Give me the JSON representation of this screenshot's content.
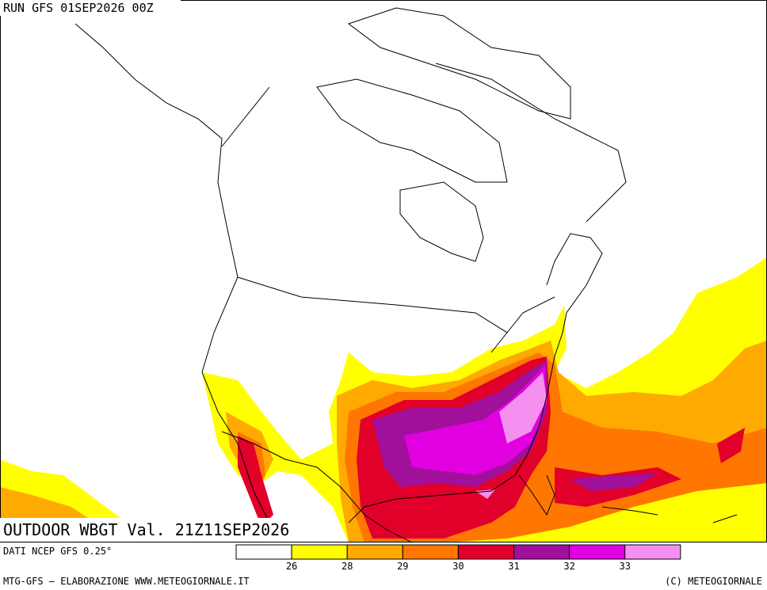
{
  "header": {
    "run": "RUN GFS 01SEP2026 00Z"
  },
  "map": {
    "title": "OUTDOOR WBGT Val. 21Z11SEP2026"
  },
  "legend": {
    "source": "DATI NCEP GFS 0.25°",
    "thresholds": [
      26,
      28,
      29,
      30,
      31,
      32,
      33
    ],
    "colors": [
      "#ffffff",
      "#ffff00",
      "#ffaa00",
      "#ff7700",
      "#e0002a",
      "#a0109a",
      "#e000e0",
      "#f590f0"
    ]
  },
  "footer": {
    "left": "MTG-GFS — ELABORAZIONE WWW.METEOGIORNALE.IT",
    "right": "(C) METEOGIORNALE"
  }
}
